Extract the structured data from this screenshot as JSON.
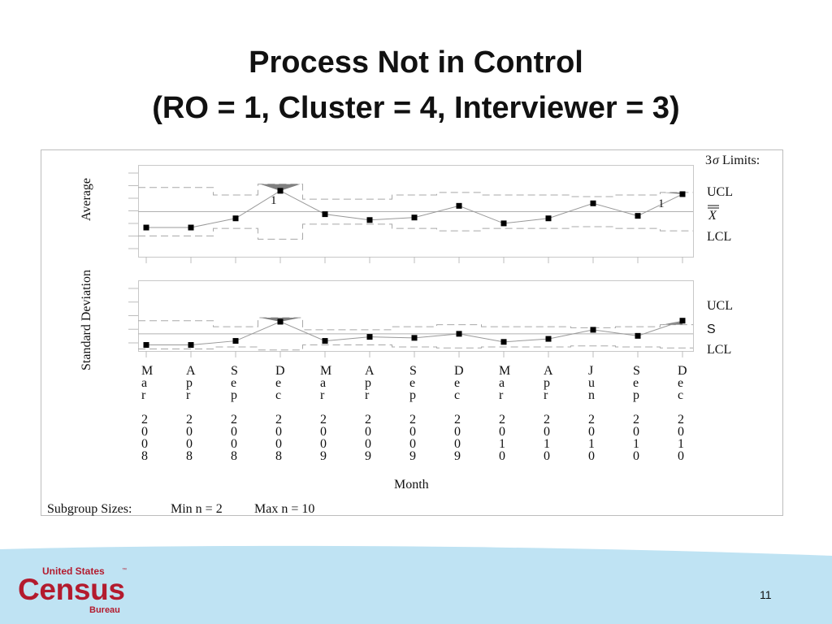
{
  "slide": {
    "title_line1": "Process Not in Control",
    "title_line2": "(RO = 1, Cluster = 4, Interviewer = 3)",
    "page_number": "11"
  },
  "logo": {
    "line1": "United States",
    "tm": "™",
    "line2": "Census",
    "line3": "Bureau",
    "brand_color": "#b31b2e"
  },
  "colors": {
    "accent": "#bfe3f3",
    "line": "#999999",
    "marker": "#000000",
    "shade": "#808080"
  },
  "chart_data": {
    "type": "line",
    "categories": [
      {
        "month": "Mar",
        "year": "2008"
      },
      {
        "month": "Apr",
        "year": "2008"
      },
      {
        "month": "Sep",
        "year": "2008"
      },
      {
        "month": "Dec",
        "year": "2008"
      },
      {
        "month": "Mar",
        "year": "2009"
      },
      {
        "month": "Apr",
        "year": "2009"
      },
      {
        "month": "Sep",
        "year": "2009"
      },
      {
        "month": "Dec",
        "year": "2009"
      },
      {
        "month": "Mar",
        "year": "2010"
      },
      {
        "month": "Apr",
        "year": "2010"
      },
      {
        "month": "Jun",
        "year": "2010"
      },
      {
        "month": "Sep",
        "year": "2010"
      },
      {
        "month": "Dec",
        "year": "2010"
      }
    ],
    "xlabel": "Month",
    "limits_label_prefix": "3",
    "limits_label_sigma": "σ",
    "limits_label_suffix": " Limits:",
    "panels": [
      {
        "name": "average",
        "ylabel": "Average",
        "ylim": [
          0,
          11
        ],
        "values": [
          3.5,
          3.5,
          4.6,
          7.9,
          5.1,
          4.4,
          4.7,
          6.1,
          4.0,
          4.6,
          6.4,
          4.9,
          7.5
        ],
        "center": 5.4,
        "ucl": [
          8.3,
          8.3,
          7.4,
          8.7,
          6.9,
          6.9,
          7.4,
          7.7,
          7.4,
          7.4,
          7.2,
          7.4,
          7.7
        ],
        "lcl": [
          2.5,
          2.5,
          3.4,
          2.1,
          3.9,
          3.9,
          3.4,
          3.1,
          3.4,
          3.4,
          3.6,
          3.4,
          3.1
        ],
        "flag_label": "1",
        "flagged": [
          3,
          12
        ],
        "right_labels": [
          "UCL",
          "X",
          "LCL"
        ]
      },
      {
        "name": "stddev",
        "ylim": [
          0,
          7
        ],
        "values": [
          0.6,
          0.6,
          1.0,
          2.9,
          1.0,
          1.4,
          1.3,
          1.7,
          0.9,
          1.2,
          2.1,
          1.5,
          3.0
        ],
        "center": 1.7,
        "ucl": [
          3.0,
          3.0,
          2.4,
          3.3,
          2.1,
          2.1,
          2.4,
          2.6,
          2.4,
          2.4,
          2.3,
          2.4,
          2.6
        ],
        "lcl": [
          0.2,
          0.2,
          0.4,
          0.1,
          0.6,
          0.6,
          0.4,
          0.3,
          0.4,
          0.4,
          0.5,
          0.4,
          0.3
        ],
        "flagged": [
          3,
          12
        ],
        "right_labels": [
          "UCL",
          "S",
          "LCL"
        ]
      }
    ],
    "shared_ylabel": "Standard Deviation",
    "subgroup_label": "Subgroup Sizes:",
    "min_n": "Min n = 2",
    "max_n": "Max n = 10"
  }
}
